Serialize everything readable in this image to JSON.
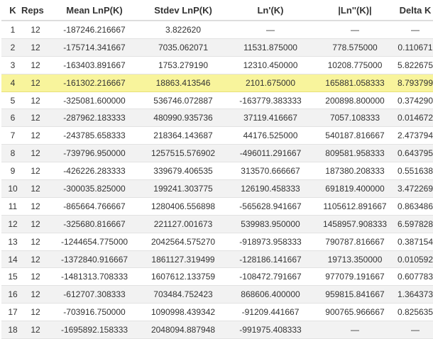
{
  "columns": [
    "K",
    "Reps",
    "Mean LnP(K)",
    "Stdev LnP(K)",
    "Ln'(K)",
    "|Ln''(K)|",
    "Delta K"
  ],
  "highlight_k": "4",
  "highlight_color": "#f8f49c",
  "rows": [
    {
      "k": "1",
      "reps": "12",
      "mean": "-187246.216667",
      "stdev": "3.822620",
      "ln1": "—",
      "ln2": "—",
      "dk": "—"
    },
    {
      "k": "2",
      "reps": "12",
      "mean": "-175714.341667",
      "stdev": "7035.062071",
      "ln1": "11531.875000",
      "ln2": "778.575000",
      "dk": "0.110671"
    },
    {
      "k": "3",
      "reps": "12",
      "mean": "-163403.891667",
      "stdev": "1753.279190",
      "ln1": "12310.450000",
      "ln2": "10208.775000",
      "dk": "5.822675"
    },
    {
      "k": "4",
      "reps": "12",
      "mean": "-161302.216667",
      "stdev": "18863.413546",
      "ln1": "2101.675000",
      "ln2": "165881.058333",
      "dk": "8.793799"
    },
    {
      "k": "5",
      "reps": "12",
      "mean": "-325081.600000",
      "stdev": "536746.072887",
      "ln1": "-163779.383333",
      "ln2": "200898.800000",
      "dk": "0.374290"
    },
    {
      "k": "6",
      "reps": "12",
      "mean": "-287962.183333",
      "stdev": "480990.935736",
      "ln1": "37119.416667",
      "ln2": "7057.108333",
      "dk": "0.014672"
    },
    {
      "k": "7",
      "reps": "12",
      "mean": "-243785.658333",
      "stdev": "218364.143687",
      "ln1": "44176.525000",
      "ln2": "540187.816667",
      "dk": "2.473794"
    },
    {
      "k": "8",
      "reps": "12",
      "mean": "-739796.950000",
      "stdev": "1257515.576902",
      "ln1": "-496011.291667",
      "ln2": "809581.958333",
      "dk": "0.643795"
    },
    {
      "k": "9",
      "reps": "12",
      "mean": "-426226.283333",
      "stdev": "339679.406535",
      "ln1": "313570.666667",
      "ln2": "187380.208333",
      "dk": "0.551638"
    },
    {
      "k": "10",
      "reps": "12",
      "mean": "-300035.825000",
      "stdev": "199241.303775",
      "ln1": "126190.458333",
      "ln2": "691819.400000",
      "dk": "3.472269"
    },
    {
      "k": "11",
      "reps": "12",
      "mean": "-865664.766667",
      "stdev": "1280406.556898",
      "ln1": "-565628.941667",
      "ln2": "1105612.891667",
      "dk": "0.863486"
    },
    {
      "k": "12",
      "reps": "12",
      "mean": "-325680.816667",
      "stdev": "221127.001673",
      "ln1": "539983.950000",
      "ln2": "1458957.908333",
      "dk": "6.597828"
    },
    {
      "k": "13",
      "reps": "12",
      "mean": "-1244654.775000",
      "stdev": "2042564.575270",
      "ln1": "-918973.958333",
      "ln2": "790787.816667",
      "dk": "0.387154"
    },
    {
      "k": "14",
      "reps": "12",
      "mean": "-1372840.916667",
      "stdev": "1861127.319499",
      "ln1": "-128186.141667",
      "ln2": "19713.350000",
      "dk": "0.010592"
    },
    {
      "k": "15",
      "reps": "12",
      "mean": "-1481313.708333",
      "stdev": "1607612.133759",
      "ln1": "-108472.791667",
      "ln2": "977079.191667",
      "dk": "0.607783"
    },
    {
      "k": "16",
      "reps": "12",
      "mean": "-612707.308333",
      "stdev": "703484.752423",
      "ln1": "868606.400000",
      "ln2": "959815.841667",
      "dk": "1.364373"
    },
    {
      "k": "17",
      "reps": "12",
      "mean": "-703916.750000",
      "stdev": "1090998.439342",
      "ln1": "-91209.441667",
      "ln2": "900765.966667",
      "dk": "0.825635"
    },
    {
      "k": "18",
      "reps": "12",
      "mean": "-1695892.158333",
      "stdev": "2048094.887948",
      "ln1": "-991975.408333",
      "ln2": "—",
      "dk": "—"
    }
  ]
}
